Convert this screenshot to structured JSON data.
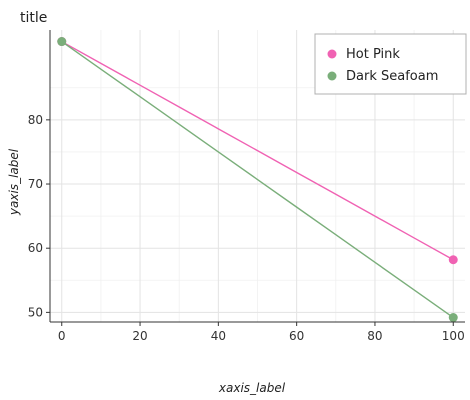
{
  "chart_data": {
    "type": "line",
    "title": "title",
    "xlabel": "xaxis_label",
    "ylabel": "yaxis_label",
    "xlim": [
      -3,
      103
    ],
    "ylim": [
      48.5,
      94
    ],
    "x_ticks": [
      0,
      20,
      40,
      60,
      80,
      100
    ],
    "y_ticks": [
      50,
      60,
      70,
      80
    ],
    "grid": true,
    "legend_position": "top-right",
    "series": [
      {
        "name": "Hot Pink",
        "color": "#f062b3",
        "x": [
          0,
          10,
          20,
          30,
          40,
          50,
          60,
          70,
          80,
          90,
          100
        ],
        "y": [
          92.2,
          88.8,
          85.4,
          82.0,
          78.6,
          75.2,
          71.8,
          68.4,
          65.0,
          61.6,
          58.2
        ]
      },
      {
        "name": "Dark Seafoam",
        "color": "#7aae7a",
        "x": [
          0,
          10,
          20,
          30,
          40,
          50,
          60,
          70,
          80,
          90,
          100
        ],
        "y": [
          92.2,
          87.9,
          83.6,
          79.3,
          75.0,
          70.7,
          66.4,
          62.1,
          57.8,
          53.5,
          49.2
        ]
      }
    ]
  }
}
